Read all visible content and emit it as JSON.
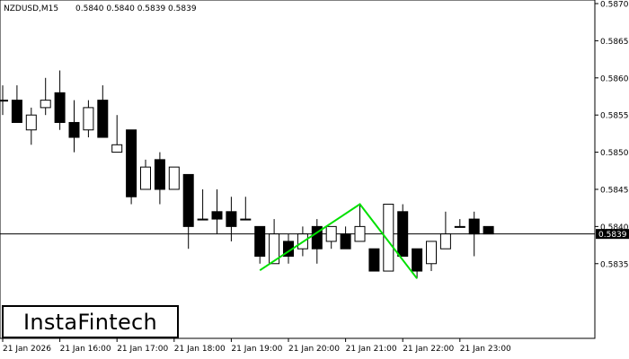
{
  "header": {
    "symbol": "NZDUSD,M15",
    "ohlc": "0.5840 0.5840 0.5839 0.5839"
  },
  "logo": {
    "text": "InstaFintech"
  },
  "price_axis": {
    "current_price": "0.5839",
    "ticks": [
      "0.5870",
      "0.5865",
      "0.5860",
      "0.5855",
      "0.5850",
      "0.5845",
      "0.5840",
      "0.5835"
    ]
  },
  "time_axis": {
    "labels": [
      {
        "slot": 0,
        "text": "21 Jan 2026"
      },
      {
        "slot": 4,
        "text": "21 Jan 16:00"
      },
      {
        "slot": 8,
        "text": "21 Jan 17:00"
      },
      {
        "slot": 12,
        "text": "21 Jan 18:00"
      },
      {
        "slot": 16,
        "text": "21 Jan 19:00"
      },
      {
        "slot": 20,
        "text": "21 Jan 20:00"
      },
      {
        "slot": 24,
        "text": "21 Jan 21:00"
      },
      {
        "slot": 28,
        "text": "21 Jan 22:00"
      },
      {
        "slot": 32,
        "text": "21 Jan 23:00"
      }
    ]
  },
  "chart_data": {
    "type": "candlestick",
    "ylim": [
      0.5827,
      0.587
    ],
    "current_price": 0.5839,
    "candles": [
      {
        "o": 0.5857,
        "h": 0.5859,
        "l": 0.5855,
        "c": 0.5857
      },
      {
        "o": 0.5857,
        "h": 0.5859,
        "l": 0.5854,
        "c": 0.5854
      },
      {
        "o": 0.5853,
        "h": 0.5856,
        "l": 0.5851,
        "c": 0.5855
      },
      {
        "o": 0.5856,
        "h": 0.586,
        "l": 0.5855,
        "c": 0.5857
      },
      {
        "o": 0.5858,
        "h": 0.5861,
        "l": 0.5853,
        "c": 0.5854
      },
      {
        "o": 0.5854,
        "h": 0.5857,
        "l": 0.585,
        "c": 0.5852
      },
      {
        "o": 0.5853,
        "h": 0.5857,
        "l": 0.5852,
        "c": 0.5856
      },
      {
        "o": 0.5857,
        "h": 0.5859,
        "l": 0.5852,
        "c": 0.5852
      },
      {
        "o": 0.585,
        "h": 0.5855,
        "l": 0.585,
        "c": 0.5851
      },
      {
        "o": 0.5853,
        "h": 0.5853,
        "l": 0.5843,
        "c": 0.5844
      },
      {
        "o": 0.5845,
        "h": 0.5849,
        "l": 0.5845,
        "c": 0.5848
      },
      {
        "o": 0.5849,
        "h": 0.585,
        "l": 0.5843,
        "c": 0.5845
      },
      {
        "o": 0.5845,
        "h": 0.5848,
        "l": 0.5845,
        "c": 0.5848
      },
      {
        "o": 0.5847,
        "h": 0.5847,
        "l": 0.5837,
        "c": 0.584
      },
      {
        "o": 0.5841,
        "h": 0.5845,
        "l": 0.5841,
        "c": 0.5841
      },
      {
        "o": 0.5842,
        "h": 0.5845,
        "l": 0.5839,
        "c": 0.5841
      },
      {
        "o": 0.5842,
        "h": 0.5844,
        "l": 0.5838,
        "c": 0.584
      },
      {
        "o": 0.5841,
        "h": 0.5844,
        "l": 0.5841,
        "c": 0.5841
      },
      {
        "o": 0.584,
        "h": 0.584,
        "l": 0.5835,
        "c": 0.5836
      },
      {
        "o": 0.5835,
        "h": 0.5841,
        "l": 0.5835,
        "c": 0.5839
      },
      {
        "o": 0.5838,
        "h": 0.5839,
        "l": 0.5835,
        "c": 0.5836
      },
      {
        "o": 0.5837,
        "h": 0.584,
        "l": 0.5836,
        "c": 0.5839
      },
      {
        "o": 0.584,
        "h": 0.5841,
        "l": 0.5835,
        "c": 0.5837
      },
      {
        "o": 0.5838,
        "h": 0.584,
        "l": 0.5837,
        "c": 0.584
      },
      {
        "o": 0.5839,
        "h": 0.584,
        "l": 0.5837,
        "c": 0.5837
      },
      {
        "o": 0.5838,
        "h": 0.5843,
        "l": 0.5838,
        "c": 0.584
      },
      {
        "o": 0.5837,
        "h": 0.5837,
        "l": 0.5834,
        "c": 0.5834
      },
      {
        "o": 0.5834,
        "h": 0.5843,
        "l": 0.5834,
        "c": 0.5843
      },
      {
        "o": 0.5842,
        "h": 0.5843,
        "l": 0.5836,
        "c": 0.5836
      },
      {
        "o": 0.5837,
        "h": 0.5837,
        "l": 0.5833,
        "c": 0.5834
      },
      {
        "o": 0.5835,
        "h": 0.5838,
        "l": 0.5834,
        "c": 0.5838
      },
      {
        "o": 0.5837,
        "h": 0.5842,
        "l": 0.5837,
        "c": 0.5839
      },
      {
        "o": 0.584,
        "h": 0.5841,
        "l": 0.584,
        "c": 0.584
      },
      {
        "o": 0.5841,
        "h": 0.5842,
        "l": 0.5836,
        "c": 0.5839
      },
      {
        "o": 0.584,
        "h": 0.584,
        "l": 0.5839,
        "c": 0.5839
      }
    ],
    "pattern": {
      "name": "double top",
      "points": [
        {
          "slot": 18,
          "price": 0.58341
        },
        {
          "slot": 25,
          "price": 0.5843
        },
        {
          "slot": 29,
          "price": 0.5833
        }
      ],
      "color": "#00e000"
    },
    "colors": {
      "bull": "#ffffff",
      "bear": "#000000",
      "outline": "#000000"
    }
  }
}
